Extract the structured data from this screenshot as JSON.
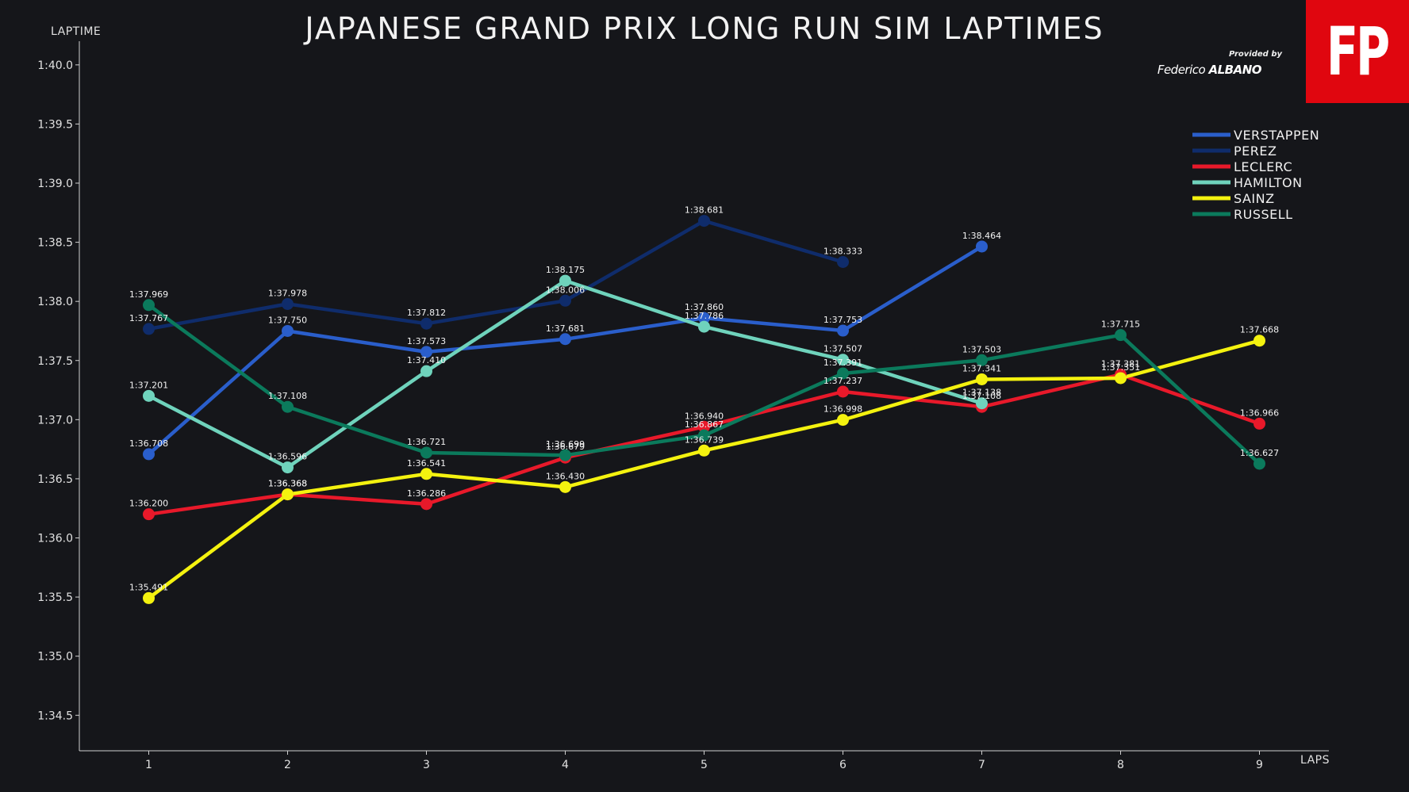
{
  "header": {
    "title": "JAPANESE GRAND PRIX LONG RUN SIM LAPTIMES",
    "logo_text": "FP",
    "provided_by": "Provided by",
    "author_first": "Federico",
    "author_last": "ALBANO"
  },
  "chart_data": {
    "type": "line",
    "title": "JAPANESE GRAND PRIX LONG RUN SIM LAPTIMES",
    "xlabel": "LAPS",
    "ylabel": "LAPTIME",
    "x": [
      1,
      2,
      3,
      4,
      5,
      6,
      7,
      8,
      9
    ],
    "xlim": [
      0.5,
      9.5
    ],
    "ylim": [
      94.2,
      100.2
    ],
    "yticks": [
      94.5,
      95.0,
      95.5,
      96.0,
      96.5,
      97.0,
      97.5,
      98.0,
      98.5,
      99.0,
      99.5,
      100.0
    ],
    "ytick_labels": [
      "1:34.5",
      "1:35.0",
      "1:35.5",
      "1:36.0",
      "1:36.5",
      "1:37.0",
      "1:37.5",
      "1:38.0",
      "1:38.5",
      "1:39.0",
      "1:39.5",
      "1:40.0"
    ],
    "grid": false,
    "legend_position": "top-right",
    "series": [
      {
        "name": "VERSTAPPEN",
        "color": "#2a5ecb",
        "points": [
          {
            "x": 1,
            "y": 96.708,
            "label": "1:36.708"
          },
          {
            "x": 2,
            "y": 97.75,
            "label": "1:37.750"
          },
          {
            "x": 3,
            "y": 97.573,
            "label": "1:37.573"
          },
          {
            "x": 4,
            "y": 97.681,
            "label": "1:37.681"
          },
          {
            "x": 5,
            "y": 97.86,
            "label": "1:37.860"
          },
          {
            "x": 6,
            "y": 97.753,
            "label": "1:37.753"
          },
          {
            "x": 7,
            "y": 98.464,
            "label": "1:38.464"
          }
        ]
      },
      {
        "name": "PEREZ",
        "color": "#0f2c6b",
        "points": [
          {
            "x": 1,
            "y": 97.767,
            "label": "1:37.767"
          },
          {
            "x": 2,
            "y": 97.978,
            "label": "1:37.978"
          },
          {
            "x": 3,
            "y": 97.812,
            "label": "1:37.812"
          },
          {
            "x": 4,
            "y": 98.006,
            "label": "1:38.006"
          },
          {
            "x": 5,
            "y": 98.681,
            "label": "1:38.681"
          },
          {
            "x": 6,
            "y": 98.333,
            "label": "1:38.333"
          }
        ]
      },
      {
        "name": "LECLERC",
        "color": "#e8192a",
        "points": [
          {
            "x": 1,
            "y": 96.2,
            "label": "1:36.200"
          },
          {
            "x": 2,
            "y": 96.368,
            "label": "1:36.368"
          },
          {
            "x": 3,
            "y": 96.286,
            "label": "1:36.286"
          },
          {
            "x": 4,
            "y": 96.679,
            "label": "1:36.679"
          },
          {
            "x": 5,
            "y": 96.94,
            "label": "1:36.940"
          },
          {
            "x": 6,
            "y": 97.237,
            "label": "1:37.237"
          },
          {
            "x": 7,
            "y": 97.108,
            "label": "1:37.108"
          },
          {
            "x": 8,
            "y": 97.381,
            "label": "1:37.381"
          },
          {
            "x": 9,
            "y": 96.966,
            "label": "1:36.966"
          }
        ]
      },
      {
        "name": "HAMILTON",
        "color": "#6fd3bc",
        "points": [
          {
            "x": 1,
            "y": 97.201,
            "label": "1:37.201"
          },
          {
            "x": 2,
            "y": 96.596,
            "label": "1:36.596"
          },
          {
            "x": 3,
            "y": 97.41,
            "label": "1:37.410"
          },
          {
            "x": 4,
            "y": 98.175,
            "label": "1:38.175"
          },
          {
            "x": 5,
            "y": 97.786,
            "label": "1:37.786"
          },
          {
            "x": 6,
            "y": 97.507,
            "label": "1:37.507"
          },
          {
            "x": 7,
            "y": 97.138,
            "label": "1:37.138"
          }
        ]
      },
      {
        "name": "SAINZ",
        "color": "#f4f20f",
        "points": [
          {
            "x": 1,
            "y": 95.491,
            "label": "1:35.491"
          },
          {
            "x": 2,
            "y": 96.368,
            "label": "1:36.368"
          },
          {
            "x": 3,
            "y": 96.541,
            "label": "1:36.541"
          },
          {
            "x": 4,
            "y": 96.43,
            "label": "1:36.430"
          },
          {
            "x": 5,
            "y": 96.739,
            "label": "1:36.739"
          },
          {
            "x": 6,
            "y": 96.998,
            "label": "1:36.998"
          },
          {
            "x": 7,
            "y": 97.341,
            "label": "1:37.341"
          },
          {
            "x": 8,
            "y": 97.351,
            "label": "1:37.351"
          },
          {
            "x": 9,
            "y": 97.668,
            "label": "1:37.668"
          }
        ]
      },
      {
        "name": "RUSSELL",
        "color": "#0b7a5c",
        "points": [
          {
            "x": 1,
            "y": 97.969,
            "label": "1:37.969"
          },
          {
            "x": 2,
            "y": 97.108,
            "label": "1:37.108"
          },
          {
            "x": 3,
            "y": 96.721,
            "label": "1:36.721"
          },
          {
            "x": 4,
            "y": 96.699,
            "label": "1:36.699"
          },
          {
            "x": 5,
            "y": 96.867,
            "label": "1:36.867"
          },
          {
            "x": 6,
            "y": 97.391,
            "label": "1:37.391"
          },
          {
            "x": 7,
            "y": 97.503,
            "label": "1:37.503"
          },
          {
            "x": 8,
            "y": 97.715,
            "label": "1:37.715"
          },
          {
            "x": 9,
            "y": 96.627,
            "label": "1:36.627"
          }
        ]
      }
    ]
  }
}
